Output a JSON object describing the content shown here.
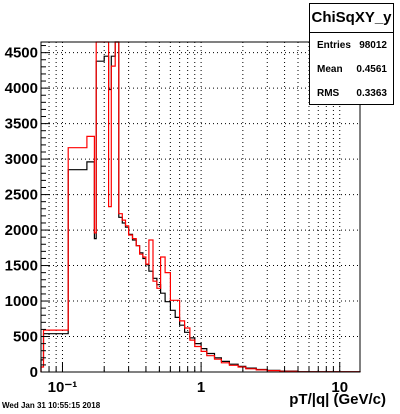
{
  "chart_data": {
    "type": "histogram",
    "xscale": "log",
    "xlim": [
      0.07,
      14
    ],
    "ylim": [
      0,
      4650
    ],
    "grid": true,
    "xlabel": "pT/|q| (GeV/c)",
    "ylabel": "",
    "yticks": [
      "0",
      "500",
      "1000",
      "1500",
      "2000",
      "2500",
      "3000",
      "3500",
      "4000",
      "4500"
    ],
    "xticks": [
      "10⁻¹",
      "1",
      "10"
    ],
    "series": [
      {
        "color": "#000000",
        "bins": [
          [
            0.07,
            0.073,
            170
          ],
          [
            0.073,
            0.11,
            540
          ],
          [
            0.11,
            0.15,
            2850
          ],
          [
            0.15,
            0.17,
            2960
          ],
          [
            0.17,
            0.175,
            1880
          ],
          [
            0.175,
            0.2,
            4380
          ],
          [
            0.2,
            0.215,
            4450
          ],
          [
            0.215,
            0.225,
            3980
          ],
          [
            0.225,
            0.24,
            4450
          ],
          [
            0.24,
            0.255,
            4650
          ],
          [
            0.255,
            0.27,
            2180
          ],
          [
            0.27,
            0.285,
            2100
          ],
          [
            0.285,
            0.3,
            2040
          ],
          [
            0.3,
            0.32,
            1940
          ],
          [
            0.32,
            0.34,
            1860
          ],
          [
            0.34,
            0.36,
            1780
          ],
          [
            0.36,
            0.38,
            1680
          ],
          [
            0.38,
            0.4,
            1600
          ],
          [
            0.4,
            0.42,
            1510
          ],
          [
            0.42,
            0.45,
            1420
          ],
          [
            0.45,
            0.48,
            1320
          ],
          [
            0.48,
            0.51,
            1230
          ],
          [
            0.51,
            0.55,
            1110
          ],
          [
            0.55,
            0.6,
            990
          ],
          [
            0.6,
            0.65,
            870
          ],
          [
            0.65,
            0.7,
            770
          ],
          [
            0.7,
            0.76,
            660
          ],
          [
            0.76,
            0.83,
            560
          ],
          [
            0.83,
            0.9,
            480
          ],
          [
            0.9,
            1.0,
            400
          ],
          [
            1.0,
            1.1,
            330
          ],
          [
            1.1,
            1.25,
            260
          ],
          [
            1.25,
            1.4,
            200
          ],
          [
            1.4,
            1.6,
            150
          ],
          [
            1.6,
            1.85,
            110
          ],
          [
            1.85,
            2.1,
            80
          ],
          [
            2.1,
            2.5,
            55
          ],
          [
            2.5,
            3.0,
            35
          ],
          [
            3.0,
            3.7,
            22
          ],
          [
            3.7,
            5.0,
            12
          ],
          [
            5.0,
            14,
            4
          ]
        ]
      },
      {
        "color": "#ff0000",
        "bins": [
          [
            0.07,
            0.073,
            70
          ],
          [
            0.073,
            0.11,
            590
          ],
          [
            0.11,
            0.15,
            3160
          ],
          [
            0.15,
            0.17,
            3320
          ],
          [
            0.17,
            0.175,
            1960
          ],
          [
            0.175,
            0.2,
            4650
          ],
          [
            0.2,
            0.215,
            4650
          ],
          [
            0.215,
            0.225,
            2330
          ],
          [
            0.225,
            0.24,
            4310
          ],
          [
            0.24,
            0.255,
            4650
          ],
          [
            0.255,
            0.27,
            2230
          ],
          [
            0.27,
            0.285,
            2140
          ],
          [
            0.285,
            0.3,
            2060
          ],
          [
            0.3,
            0.32,
            1930
          ],
          [
            0.32,
            0.34,
            1880
          ],
          [
            0.34,
            0.36,
            1780
          ],
          [
            0.36,
            0.38,
            1660
          ],
          [
            0.38,
            0.4,
            1620
          ],
          [
            0.4,
            0.42,
            1520
          ],
          [
            0.42,
            0.45,
            1860
          ],
          [
            0.45,
            0.48,
            1280
          ],
          [
            0.48,
            0.51,
            1180
          ],
          [
            0.51,
            0.55,
            1620
          ],
          [
            0.55,
            0.6,
            1400
          ],
          [
            0.6,
            0.65,
            1010
          ],
          [
            0.65,
            0.7,
            1010
          ],
          [
            0.7,
            0.76,
            720
          ],
          [
            0.76,
            0.83,
            620
          ],
          [
            0.83,
            0.9,
            450
          ],
          [
            0.9,
            1.0,
            360
          ],
          [
            1.0,
            1.1,
            290
          ],
          [
            1.1,
            1.25,
            230
          ],
          [
            1.25,
            1.4,
            180
          ],
          [
            1.4,
            1.6,
            130
          ],
          [
            1.6,
            1.85,
            95
          ],
          [
            1.85,
            2.1,
            70
          ],
          [
            2.1,
            2.5,
            45
          ],
          [
            2.5,
            3.0,
            30
          ],
          [
            3.0,
            3.7,
            20
          ],
          [
            3.7,
            5.0,
            10
          ],
          [
            5.0,
            14,
            3
          ]
        ]
      }
    ],
    "stats": {
      "title": "ChiSqXY_y",
      "rows": [
        {
          "key": "Entries",
          "value": "98012"
        },
        {
          "key": "Mean",
          "value": "0.4561"
        },
        {
          "key": "RMS",
          "value": "0.3363"
        }
      ]
    },
    "footer": "Wed Jan 31 10:55:15 2018"
  }
}
